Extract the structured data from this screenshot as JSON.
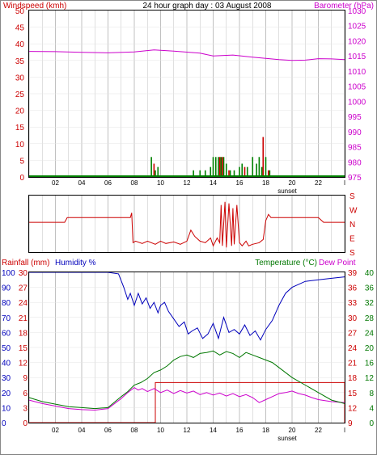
{
  "colors": {
    "wind": "#cc0000",
    "gust": "#008000",
    "baro": "#cc00cc",
    "dir": "#cc0000",
    "rain": "#cc0000",
    "humidity": "#0000bb",
    "temp": "#007700",
    "dew": "#cc00cc",
    "grid": "#c0c0c0",
    "frame": "#000000"
  },
  "chart_data": [
    {
      "type": "line",
      "id": "wind-baro",
      "title": "24 hour graph day : 03 August 2008",
      "ylabel_left": "Windspeed (kmh)",
      "ylabel_right": "Barometer (hPa)",
      "ylim_left": [
        0,
        50
      ],
      "yticks_left": [
        "0",
        "5",
        "10",
        "15",
        "20",
        "25",
        "30",
        "35",
        "40",
        "45",
        "50"
      ],
      "ylim_right": [
        975,
        1030
      ],
      "yticks_right": [
        "975",
        "980",
        "985",
        "990",
        "995",
        "1000",
        "1005",
        "1010",
        "1015",
        "1020",
        "1025",
        "1030"
      ],
      "xlim": [
        0,
        24
      ],
      "xticks": [
        "02",
        "04",
        "06",
        "08",
        "10",
        "12",
        "14",
        "16",
        "18",
        "20",
        "22",
        "l"
      ],
      "sunset_label": "sunset",
      "barometer": [
        [
          0,
          1016.5
        ],
        [
          2,
          1016.4
        ],
        [
          4,
          1016.2
        ],
        [
          6,
          1016.0
        ],
        [
          8,
          1016.3
        ],
        [
          9.5,
          1017.0
        ],
        [
          11,
          1016.6
        ],
        [
          13,
          1015.9
        ],
        [
          14,
          1015.0
        ],
        [
          15.5,
          1015.3
        ],
        [
          17,
          1014.6
        ],
        [
          19,
          1013.8
        ],
        [
          20,
          1013.5
        ],
        [
          21,
          1013.6
        ],
        [
          22,
          1014.1
        ],
        [
          23,
          1014.0
        ],
        [
          24,
          1013.8
        ]
      ],
      "wind_bars": [
        [
          9.5,
          4
        ],
        [
          14.5,
          6
        ],
        [
          14.7,
          6
        ],
        [
          15.2,
          2
        ],
        [
          16.4,
          3
        ],
        [
          17.8,
          12
        ],
        [
          18.2,
          2
        ]
      ],
      "gust_bars": [
        [
          9.3,
          6
        ],
        [
          9.6,
          2
        ],
        [
          9.8,
          3
        ],
        [
          12.5,
          2
        ],
        [
          13.0,
          2
        ],
        [
          13.4,
          2
        ],
        [
          13.8,
          3
        ],
        [
          14.0,
          6
        ],
        [
          14.2,
          6
        ],
        [
          14.4,
          6
        ],
        [
          14.6,
          6
        ],
        [
          14.8,
          6
        ],
        [
          15.0,
          4
        ],
        [
          15.3,
          2
        ],
        [
          15.6,
          2
        ],
        [
          16.0,
          3
        ],
        [
          16.2,
          4
        ],
        [
          16.6,
          3
        ],
        [
          17.0,
          6
        ],
        [
          17.3,
          4
        ],
        [
          17.5,
          6
        ],
        [
          17.7,
          3
        ],
        [
          18.0,
          6
        ],
        [
          18.3,
          2
        ]
      ]
    },
    {
      "type": "line",
      "id": "wind-direction",
      "ylim": [
        0,
        360
      ],
      "yticks_right": [
        "S",
        "E",
        "N",
        "W",
        "S"
      ],
      "xlim": [
        0,
        24
      ],
      "direction": [
        [
          0,
          190
        ],
        [
          2.7,
          190
        ],
        [
          2.9,
          220
        ],
        [
          7.7,
          220
        ],
        [
          7.8,
          250
        ],
        [
          7.9,
          60
        ],
        [
          8.1,
          70
        ],
        [
          8.6,
          55
        ],
        [
          9.0,
          70
        ],
        [
          9.6,
          50
        ],
        [
          10.0,
          70
        ],
        [
          10.4,
          55
        ],
        [
          11.0,
          65
        ],
        [
          11.5,
          50
        ],
        [
          12.0,
          70
        ],
        [
          12.3,
          140
        ],
        [
          12.6,
          100
        ],
        [
          13.0,
          70
        ],
        [
          13.4,
          60
        ],
        [
          13.8,
          90
        ],
        [
          14.0,
          40
        ],
        [
          14.3,
          90
        ],
        [
          14.5,
          60
        ],
        [
          14.6,
          300
        ],
        [
          14.7,
          40
        ],
        [
          14.9,
          320
        ],
        [
          15.0,
          30
        ],
        [
          15.2,
          310
        ],
        [
          15.4,
          40
        ],
        [
          15.5,
          280
        ],
        [
          15.6,
          50
        ],
        [
          15.8,
          300
        ],
        [
          16.0,
          60
        ],
        [
          16.2,
          40
        ],
        [
          16.5,
          70
        ],
        [
          16.7,
          40
        ],
        [
          17.0,
          50
        ],
        [
          17.5,
          60
        ],
        [
          17.8,
          80
        ],
        [
          18.0,
          200
        ],
        [
          18.2,
          240
        ],
        [
          18.4,
          220
        ],
        [
          22.0,
          220
        ],
        [
          22.4,
          190
        ],
        [
          24,
          190
        ]
      ]
    },
    {
      "type": "line",
      "id": "rain-humidity-temp",
      "ylabel_left": "Rainfall (mm)",
      "ylabel_left2": "Humidity %",
      "ylabel_right": "Temperature (°C)",
      "ylabel_right2": "Dew Point",
      "yticks_rain": [
        "0",
        "3",
        "6",
        "9",
        "12",
        "15",
        "18",
        "21",
        "24",
        "27",
        "30"
      ],
      "yticks_humidity": [
        "0",
        "10",
        "20",
        "30",
        "40",
        "50",
        "60",
        "70",
        "80",
        "90",
        "100"
      ],
      "yticks_temp_a": [
        "9",
        "12",
        "15",
        "18",
        "21",
        "24",
        "27",
        "30",
        "33",
        "36",
        "39"
      ],
      "yticks_temp_b": [
        "0",
        "4",
        "8",
        "12",
        "16",
        "20",
        "24",
        "28",
        "32",
        "36",
        "40"
      ],
      "xlim": [
        0,
        24
      ],
      "xticks": [
        "02",
        "04",
        "06",
        "08",
        "10",
        "12",
        "14",
        "16",
        "18",
        "20",
        "22",
        "l"
      ],
      "sunset_label": "sunset",
      "humidity": [
        [
          0,
          100
        ],
        [
          2,
          100
        ],
        [
          4,
          100
        ],
        [
          6,
          100
        ],
        [
          6.8,
          99
        ],
        [
          7.2,
          90
        ],
        [
          7.5,
          82
        ],
        [
          7.7,
          86
        ],
        [
          8.0,
          78
        ],
        [
          8.3,
          86
        ],
        [
          8.6,
          79
        ],
        [
          8.9,
          83
        ],
        [
          9.2,
          76
        ],
        [
          9.5,
          80
        ],
        [
          9.8,
          73
        ],
        [
          10.0,
          78
        ],
        [
          10.3,
          80
        ],
        [
          10.6,
          74
        ],
        [
          11.0,
          69
        ],
        [
          11.4,
          64
        ],
        [
          11.8,
          67
        ],
        [
          12.1,
          59
        ],
        [
          12.4,
          61
        ],
        [
          12.8,
          63
        ],
        [
          13.2,
          56
        ],
        [
          13.6,
          59
        ],
        [
          14.0,
          66
        ],
        [
          14.4,
          56
        ],
        [
          14.8,
          70
        ],
        [
          15.2,
          60
        ],
        [
          15.6,
          62
        ],
        [
          16.0,
          59
        ],
        [
          16.4,
          65
        ],
        [
          16.8,
          58
        ],
        [
          17.2,
          61
        ],
        [
          17.6,
          55
        ],
        [
          18.0,
          62
        ],
        [
          18.5,
          68
        ],
        [
          19.0,
          78
        ],
        [
          19.5,
          86
        ],
        [
          20.0,
          90
        ],
        [
          21.0,
          94
        ],
        [
          22.0,
          95
        ],
        [
          23.0,
          96
        ],
        [
          24,
          97
        ]
      ],
      "temperature": [
        [
          0,
          14.0
        ],
        [
          1,
          13.2
        ],
        [
          2,
          12.7
        ],
        [
          3,
          12.2
        ],
        [
          4,
          12.0
        ],
        [
          5,
          11.8
        ],
        [
          6,
          12.0
        ],
        [
          7,
          14.2
        ],
        [
          7.5,
          15.2
        ],
        [
          8,
          16.5
        ],
        [
          8.5,
          17.0
        ],
        [
          9,
          17.8
        ],
        [
          9.5,
          19.0
        ],
        [
          10,
          19.5
        ],
        [
          10.5,
          20.3
        ],
        [
          11,
          21.5
        ],
        [
          11.5,
          22.2
        ],
        [
          12,
          22.5
        ],
        [
          12.5,
          22.0
        ],
        [
          13,
          22.8
        ],
        [
          13.5,
          23.0
        ],
        [
          14,
          23.3
        ],
        [
          14.5,
          22.5
        ],
        [
          15,
          23.2
        ],
        [
          15.5,
          22.8
        ],
        [
          16,
          22.0
        ],
        [
          16.5,
          23.0
        ],
        [
          17,
          22.5
        ],
        [
          17.5,
          22.0
        ],
        [
          18,
          21.5
        ],
        [
          18.5,
          21.0
        ],
        [
          19,
          20.0
        ],
        [
          20,
          18.0
        ],
        [
          21,
          16.5
        ],
        [
          22,
          15.0
        ],
        [
          23,
          13.5
        ],
        [
          24,
          12.8
        ]
      ],
      "dew_point": [
        [
          0,
          13.5
        ],
        [
          1,
          12.8
        ],
        [
          2,
          12.3
        ],
        [
          3,
          11.8
        ],
        [
          4,
          11.6
        ],
        [
          5,
          11.5
        ],
        [
          6,
          11.8
        ],
        [
          7,
          13.8
        ],
        [
          7.5,
          15.0
        ],
        [
          8,
          16.0
        ],
        [
          8.3,
          15.5
        ],
        [
          8.6,
          15.8
        ],
        [
          9,
          15.2
        ],
        [
          9.5,
          15.8
        ],
        [
          10,
          15.0
        ],
        [
          10.5,
          15.5
        ],
        [
          11,
          14.8
        ],
        [
          11.5,
          15.4
        ],
        [
          12,
          14.9
        ],
        [
          12.5,
          15.3
        ],
        [
          13,
          14.6
        ],
        [
          13.5,
          15.0
        ],
        [
          14,
          14.5
        ],
        [
          14.5,
          14.9
        ],
        [
          15,
          14.3
        ],
        [
          15.5,
          14.8
        ],
        [
          16,
          14.2
        ],
        [
          16.5,
          14.6
        ],
        [
          17,
          14.0
        ],
        [
          17.5,
          13.0
        ],
        [
          18,
          13.6
        ],
        [
          18.5,
          14.2
        ],
        [
          19,
          14.8
        ],
        [
          19.5,
          15.0
        ],
        [
          20,
          15.3
        ],
        [
          20.5,
          14.8
        ],
        [
          21,
          14.5
        ],
        [
          21.5,
          14.0
        ],
        [
          22,
          13.6
        ],
        [
          23,
          13.2
        ],
        [
          24,
          13.0
        ]
      ],
      "rainfall": [
        [
          0,
          0
        ],
        [
          9.6,
          0
        ],
        [
          9.6,
          8
        ],
        [
          24,
          8
        ],
        [
          24,
          0
        ]
      ]
    }
  ]
}
